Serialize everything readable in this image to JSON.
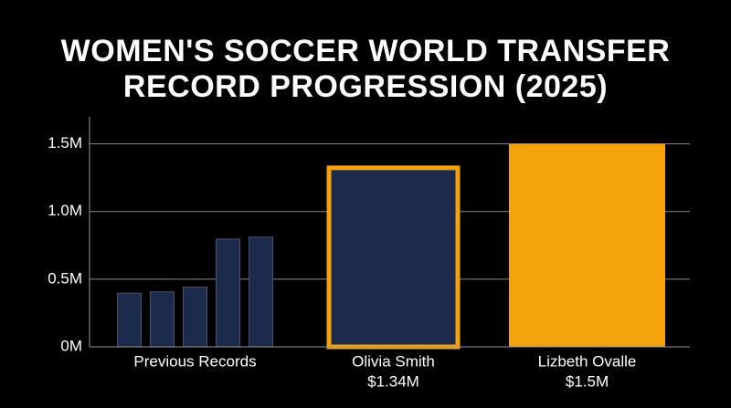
{
  "chart_data": {
    "type": "bar",
    "title": "WOMEN'S SOCCER WORLD TRANSFER RECORD PROGRESSION (2025)",
    "group_label": "Previous Records",
    "categories": [
      null,
      null,
      null,
      null,
      null,
      "Olivia Smith",
      "Lizbeth Ovalle"
    ],
    "values": [
      400000,
      410000,
      445000,
      800000,
      815000,
      1340000,
      1500000
    ],
    "value_labels": [
      null,
      null,
      null,
      null,
      null,
      "$1.34M",
      "$1.5M"
    ],
    "fills": [
      "#1c2b4b",
      "#1c2b4b",
      "#1c2b4b",
      "#1c2b4b",
      "#1c2b4b",
      "#1c2b4b",
      "#f5a30a"
    ],
    "strokes": [
      "#4a5266",
      "#4a5266",
      "#4a5266",
      "#4a5266",
      "#4a5266",
      "#f5a30a",
      "#f5a30a"
    ],
    "ylim": [
      0,
      1700000
    ],
    "yticks": [
      {
        "value": 0,
        "label": "0M"
      },
      {
        "value": 500000,
        "label": "0.5M"
      },
      {
        "value": 1000000,
        "label": "1.0M"
      },
      {
        "value": 1500000,
        "label": "1.5M"
      }
    ],
    "grid": true
  }
}
